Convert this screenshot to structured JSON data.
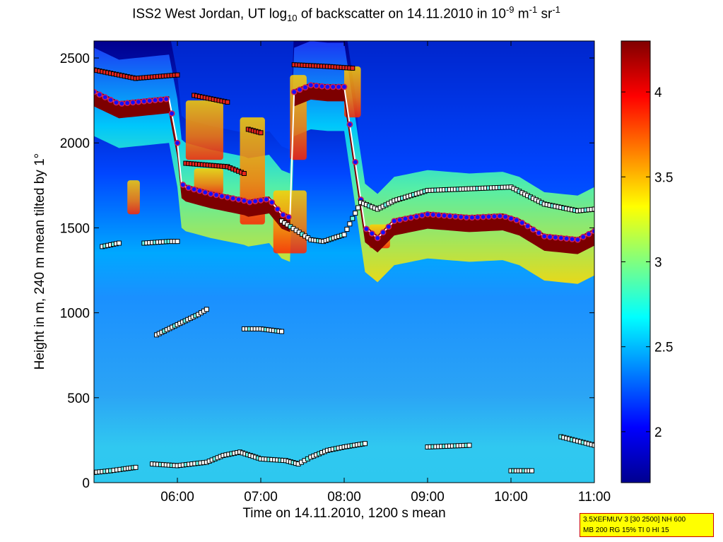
{
  "title": {
    "prefix": "ISS2 West Jordan, UT log",
    "sub": "10",
    "middle": " of backscatter on 14.11.2010 in 10",
    "exp1": "-9",
    "unit1": " m",
    "exp2": "-1",
    "unit2": " sr",
    "exp3": "-1"
  },
  "xlabel": "Time on 14.11.2010, 1200 s mean",
  "ylabel": "Height in m, 240 m mean tilted by 1°",
  "info_box": [
    "3.5XEFMUV 3 [30 2500] NH 600",
    "MB 200 RG 15% TI 0 HI 15"
  ],
  "colors": {
    "background_top": "#00008f",
    "marker_red": "#e8231e",
    "marker_white": "#ffffff",
    "marker_cyan": "#66ffee",
    "dot_fill": "#1010ff",
    "dot_ring": "#cc1e5a",
    "thick_line": "#7d0000"
  },
  "chart_data": {
    "type": "heatmap",
    "xlabel": "Time on 14.11.2010, 1200 s mean",
    "ylabel": "Height in m, 240 m mean tilted by 1°",
    "x_range_hours": [
      5.0,
      11.0
    ],
    "x_ticks": [
      6,
      7,
      8,
      9,
      10,
      11
    ],
    "x_tick_labels": [
      "06:00",
      "07:00",
      "08:00",
      "09:00",
      "10:00",
      "11:00"
    ],
    "ylim": [
      0,
      2600
    ],
    "y_ticks": [
      0,
      500,
      1000,
      1500,
      2000,
      2500
    ],
    "y_tick_labels": [
      "0",
      "500",
      "1000",
      "1500",
      "2000",
      "2500"
    ],
    "colorbar": {
      "colormap": "jet",
      "range": [
        1.7,
        4.3
      ],
      "ticks": [
        2,
        2.5,
        3,
        3.5,
        4
      ],
      "tick_labels": [
        "2",
        "2.5",
        "3",
        "3.5",
        "4"
      ]
    },
    "boundary_profile": {
      "description": "cloud-base / aerosol boundary line",
      "x": [
        5.0,
        5.3,
        5.5,
        5.7,
        5.9,
        6.0,
        6.05,
        6.1,
        6.4,
        6.8,
        6.85,
        7.1,
        7.25,
        7.35,
        7.4,
        7.6,
        7.8,
        8.0,
        8.25,
        8.4,
        8.6,
        9.0,
        9.5,
        9.9,
        10.1,
        10.4,
        10.8,
        11.0
      ],
      "y": [
        2300,
        2230,
        2240,
        2250,
        2260,
        2000,
        1760,
        1740,
        1700,
        1660,
        1650,
        1670,
        1580,
        1560,
        2300,
        2340,
        2330,
        2330,
        1500,
        1440,
        1540,
        1580,
        1560,
        1570,
        1540,
        1450,
        1430,
        1480
      ]
    },
    "marker_tracks": [
      {
        "x": [
          5.0,
          5.2,
          5.35,
          5.5
        ],
        "y": [
          60,
          70,
          80,
          90
        ]
      },
      {
        "x": [
          5.7,
          6.0,
          6.35,
          6.55,
          6.75,
          7.0,
          7.3,
          7.45,
          7.6,
          7.8,
          8.0,
          8.25
        ],
        "y": [
          110,
          100,
          120,
          160,
          180,
          140,
          130,
          110,
          150,
          190,
          210,
          230
        ]
      },
      {
        "x": [
          9.0,
          9.5
        ],
        "y": [
          210,
          220
        ]
      },
      {
        "x": [
          10.0,
          10.25
        ],
        "y": [
          70,
          70
        ]
      },
      {
        "x": [
          10.6,
          11.0
        ],
        "y": [
          270,
          220
        ]
      },
      {
        "x": [
          5.75,
          6.0,
          6.25,
          6.35
        ],
        "y": [
          870,
          930,
          990,
          1020
        ]
      },
      {
        "x": [
          6.8,
          7.0,
          7.25
        ],
        "y": [
          905,
          905,
          890
        ]
      },
      {
        "x": [
          5.1,
          5.2,
          5.3
        ],
        "y": [
          1390,
          1400,
          1410
        ]
      },
      {
        "x": [
          5.6,
          5.9,
          6.0
        ],
        "y": [
          1410,
          1420,
          1420
        ]
      },
      {
        "x": [
          7.25,
          7.6,
          7.75,
          8.0,
          8.2,
          8.4,
          8.6,
          9.0,
          9.5,
          10.0,
          10.4,
          10.8,
          11.0
        ],
        "y": [
          1540,
          1430,
          1420,
          1460,
          1650,
          1610,
          1660,
          1720,
          1730,
          1740,
          1640,
          1600,
          1610
        ]
      }
    ],
    "colorbar_label_position": "right"
  }
}
